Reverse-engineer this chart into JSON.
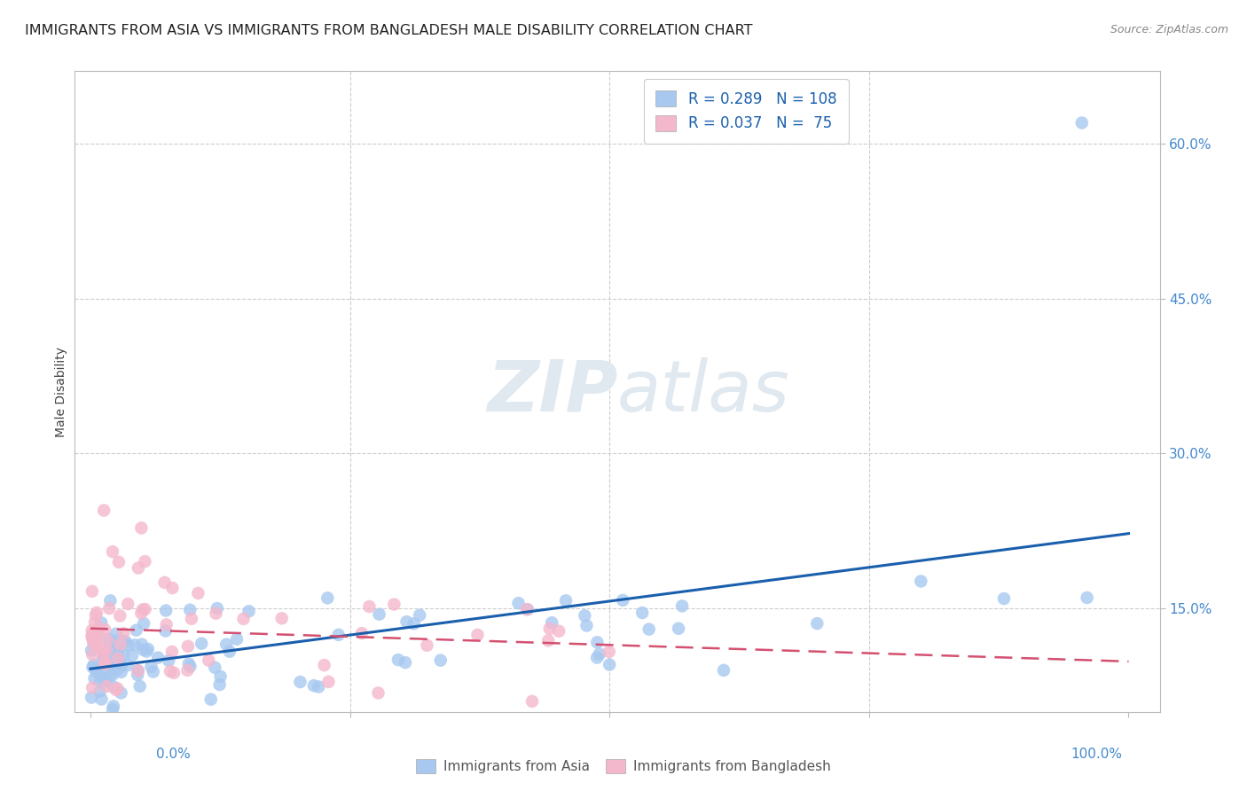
{
  "title": "IMMIGRANTS FROM ASIA VS IMMIGRANTS FROM BANGLADESH MALE DISABILITY CORRELATION CHART",
  "source": "Source: ZipAtlas.com",
  "ylabel": "Male Disability",
  "asia_color": "#a8c8f0",
  "bang_color": "#f4b8cc",
  "asia_line_color": "#1a5fad",
  "bang_line_color": "#d45070",
  "background_color": "#ffffff",
  "grid_color": "#cccccc",
  "legend_asia_R": "0.289",
  "legend_asia_N": "108",
  "legend_bang_R": "0.037",
  "legend_bang_N": " 75",
  "ytick_vals": [
    0.15,
    0.3,
    0.45,
    0.6
  ],
  "ytick_labels": [
    "15.0%",
    "30.0%",
    "45.0%",
    "60.0%"
  ],
  "ylim": [
    0.05,
    0.67
  ],
  "xlim": [
    -0.015,
    1.03
  ]
}
